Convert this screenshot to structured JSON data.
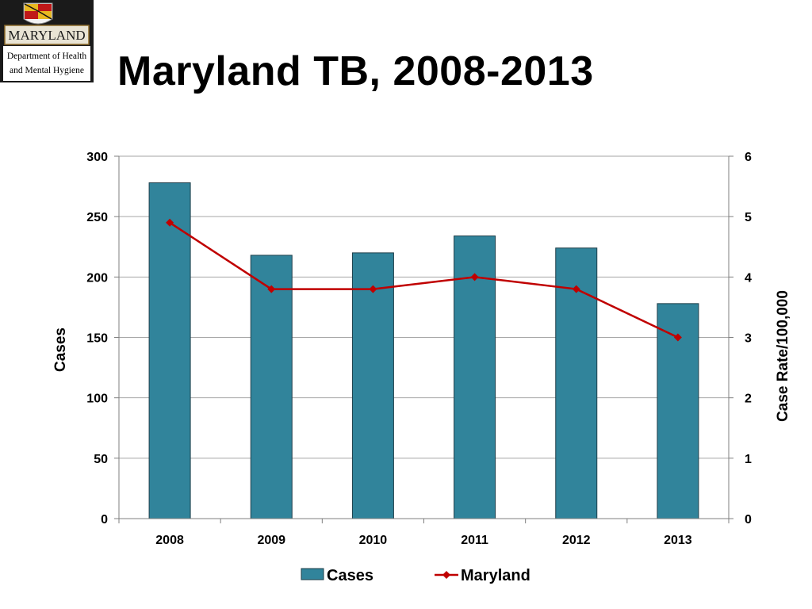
{
  "logo": {
    "name": "MARYLAND",
    "line1": "Department of Health",
    "line2": "and Mental Hygiene"
  },
  "colors": {
    "bar": "#31849B",
    "bar_stroke": "#1F3F4A",
    "line": "#C00000",
    "grid": "#A6A6A6"
  },
  "chart_data": {
    "type": "bar",
    "title": "Maryland TB, 2008-2013",
    "categories": [
      "2008",
      "2009",
      "2010",
      "2011",
      "2012",
      "2013"
    ],
    "series": [
      {
        "name": "Cases",
        "type": "bar",
        "axis": "left",
        "values": [
          278,
          218,
          220,
          234,
          224,
          178
        ]
      },
      {
        "name": "Maryland",
        "type": "line",
        "axis": "right",
        "values": [
          4.9,
          3.8,
          3.8,
          4.0,
          3.8,
          3.0
        ]
      }
    ],
    "ylabel": "Cases",
    "ylabel_right": "Case Rate/100,000",
    "ylim": [
      0,
      300
    ],
    "ylim_right": [
      0,
      6
    ],
    "yticks": [
      "0",
      "50",
      "100",
      "150",
      "200",
      "250",
      "300"
    ],
    "yticks_right": [
      "0",
      "1",
      "2",
      "3",
      "4",
      "5",
      "6"
    ],
    "grid": true,
    "legend_position": "bottom"
  }
}
